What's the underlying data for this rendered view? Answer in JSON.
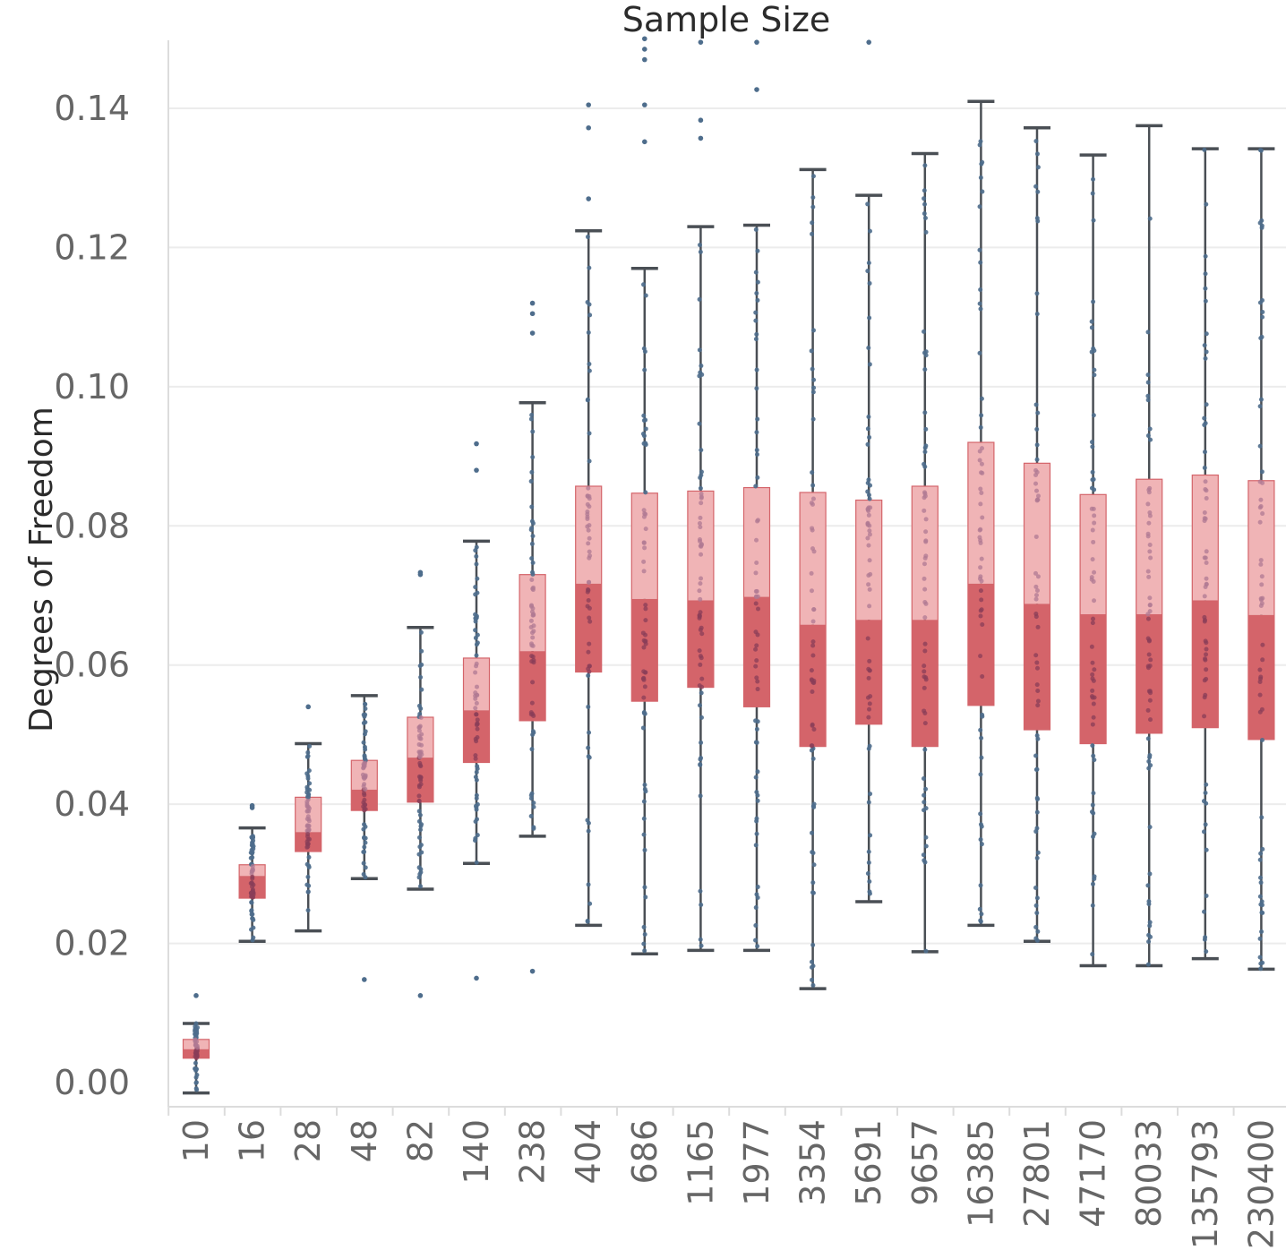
{
  "chart_data": {
    "type": "boxplot",
    "title": "Sample Size",
    "xlabel": "",
    "ylabel": "Degrees of Freedom",
    "ylim": [
      -0.003,
      0.15
    ],
    "yticks": [
      "0.00",
      "0.02",
      "0.04",
      "0.06",
      "0.08",
      "0.10",
      "0.12",
      "0.14"
    ],
    "ytick_values": [
      0.0,
      0.02,
      0.04,
      0.06,
      0.08,
      0.1,
      0.12,
      0.14
    ],
    "grid": true,
    "colors": {
      "upper_box": "#f0b4b6",
      "lower_box": "#d4646a",
      "whisker": "#4a4f55",
      "points": "#4e6d8c",
      "gridline": "#ececec",
      "axis": "#dcdcdc"
    },
    "categories": [
      "10",
      "16",
      "28",
      "48",
      "82",
      "140",
      "238",
      "404",
      "686",
      "1165",
      "1977",
      "3354",
      "5691",
      "9657",
      "16385",
      "27801",
      "47170",
      "80033",
      "135793",
      "230400"
    ],
    "boxes": [
      {
        "category": "10",
        "whisker_low": -0.0015,
        "q1": 0.0035,
        "median": 0.0048,
        "q3": 0.0062,
        "whisker_high": 0.0085,
        "outliers": [
          0.0125
        ]
      },
      {
        "category": "16",
        "whisker_low": 0.0203,
        "q1": 0.0265,
        "median": 0.0297,
        "q3": 0.0313,
        "whisker_high": 0.0366,
        "outliers": [
          0.0395,
          0.0398
        ]
      },
      {
        "category": "28",
        "whisker_low": 0.0218,
        "q1": 0.0332,
        "median": 0.036,
        "q3": 0.041,
        "whisker_high": 0.0487,
        "outliers": [
          0.054
        ]
      },
      {
        "category": "48",
        "whisker_low": 0.0293,
        "q1": 0.0391,
        "median": 0.0421,
        "q3": 0.0463,
        "whisker_high": 0.0556,
        "outliers": [
          0.0148
        ]
      },
      {
        "category": "82",
        "whisker_low": 0.0278,
        "q1": 0.0403,
        "median": 0.0467,
        "q3": 0.0525,
        "whisker_high": 0.0654,
        "outliers": [
          0.073,
          0.0733,
          0.0125
        ]
      },
      {
        "category": "140",
        "whisker_low": 0.0315,
        "q1": 0.046,
        "median": 0.0535,
        "q3": 0.061,
        "whisker_high": 0.0778,
        "outliers": [
          0.0918,
          0.088,
          0.015
        ]
      },
      {
        "category": "238",
        "whisker_low": 0.0354,
        "q1": 0.052,
        "median": 0.062,
        "q3": 0.073,
        "whisker_high": 0.0977,
        "outliers": [
          0.112,
          0.1105,
          0.1077,
          0.016
        ]
      },
      {
        "category": "404",
        "whisker_low": 0.0226,
        "q1": 0.059,
        "median": 0.0717,
        "q3": 0.0857,
        "whisker_high": 0.1224,
        "outliers": [
          0.1405,
          0.1372,
          0.127
        ]
      },
      {
        "category": "686",
        "whisker_low": 0.0185,
        "q1": 0.0548,
        "median": 0.0695,
        "q3": 0.0847,
        "whisker_high": 0.117,
        "outliers": [
          0.15,
          0.1485,
          0.147,
          0.1405,
          0.1352
        ]
      },
      {
        "category": "1165",
        "whisker_low": 0.019,
        "q1": 0.0568,
        "median": 0.0693,
        "q3": 0.085,
        "whisker_high": 0.123,
        "outliers": [
          0.1495,
          0.1383,
          0.1357
        ]
      },
      {
        "category": "1977",
        "whisker_low": 0.019,
        "q1": 0.054,
        "median": 0.0698,
        "q3": 0.0855,
        "whisker_high": 0.1232,
        "outliers": [
          0.1495,
          0.1427
        ]
      },
      {
        "category": "3354",
        "whisker_low": 0.0135,
        "q1": 0.0483,
        "median": 0.0658,
        "q3": 0.0848,
        "whisker_high": 0.1312,
        "outliers": []
      },
      {
        "category": "5691",
        "whisker_low": 0.026,
        "q1": 0.0515,
        "median": 0.0665,
        "q3": 0.0837,
        "whisker_high": 0.1275,
        "outliers": [
          0.1495
        ]
      },
      {
        "category": "9657",
        "whisker_low": 0.0188,
        "q1": 0.0483,
        "median": 0.0665,
        "q3": 0.0857,
        "whisker_high": 0.1335,
        "outliers": []
      },
      {
        "category": "16385",
        "whisker_low": 0.0226,
        "q1": 0.0542,
        "median": 0.0717,
        "q3": 0.092,
        "whisker_high": 0.141,
        "outliers": []
      },
      {
        "category": "27801",
        "whisker_low": 0.0203,
        "q1": 0.0507,
        "median": 0.0688,
        "q3": 0.089,
        "whisker_high": 0.1372,
        "outliers": []
      },
      {
        "category": "47170",
        "whisker_low": 0.0168,
        "q1": 0.0487,
        "median": 0.0673,
        "q3": 0.0845,
        "whisker_high": 0.1333,
        "outliers": []
      },
      {
        "category": "80033",
        "whisker_low": 0.0168,
        "q1": 0.0502,
        "median": 0.0673,
        "q3": 0.0867,
        "whisker_high": 0.1375,
        "outliers": []
      },
      {
        "category": "135793",
        "whisker_low": 0.0178,
        "q1": 0.051,
        "median": 0.0693,
        "q3": 0.0873,
        "whisker_high": 0.1342,
        "outliers": []
      },
      {
        "category": "230400",
        "whisker_low": 0.0163,
        "q1": 0.0493,
        "median": 0.0672,
        "q3": 0.0865,
        "whisker_high": 0.1342,
        "outliers": []
      }
    ]
  }
}
